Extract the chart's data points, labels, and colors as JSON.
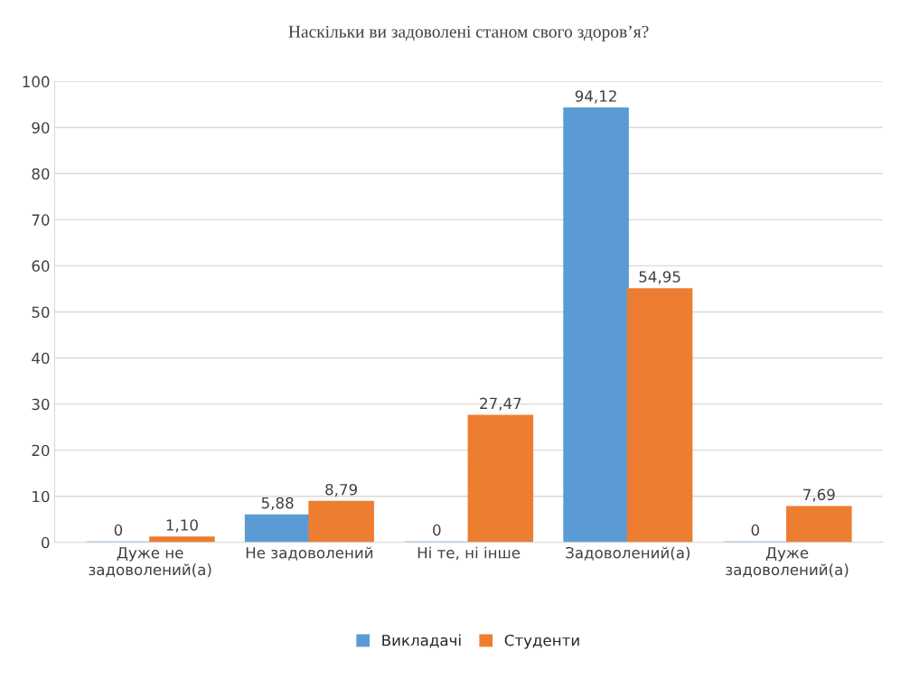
{
  "chart_data": {
    "type": "bar",
    "title": "Наскільки ви задоволені станом свого здоров’я?",
    "categories": [
      "Дуже не\nзадоволений(а)",
      "Не задоволений",
      "Ні те, ні інше",
      "Задоволений(а)",
      "Дуже\nзадоволений(а)"
    ],
    "series": [
      {
        "name": "Викладачі",
        "color": "#5b9bd5",
        "values": [
          0,
          5.88,
          0,
          94.12,
          0
        ],
        "value_labels": [
          "0",
          "5,88",
          "0",
          "94,12",
          "0"
        ]
      },
      {
        "name": "Студенти",
        "color": "#ed7d31",
        "values": [
          1.1,
          8.79,
          27.47,
          54.95,
          7.69
        ],
        "value_labels": [
          "1,10",
          "8,79",
          "27,47",
          "54,95",
          "7,69"
        ]
      }
    ],
    "ylim": [
      0,
      100
    ],
    "yticks": [
      0,
      10,
      20,
      30,
      40,
      50,
      60,
      70,
      80,
      90,
      100
    ],
    "grid": "y",
    "legend": "bottom"
  }
}
